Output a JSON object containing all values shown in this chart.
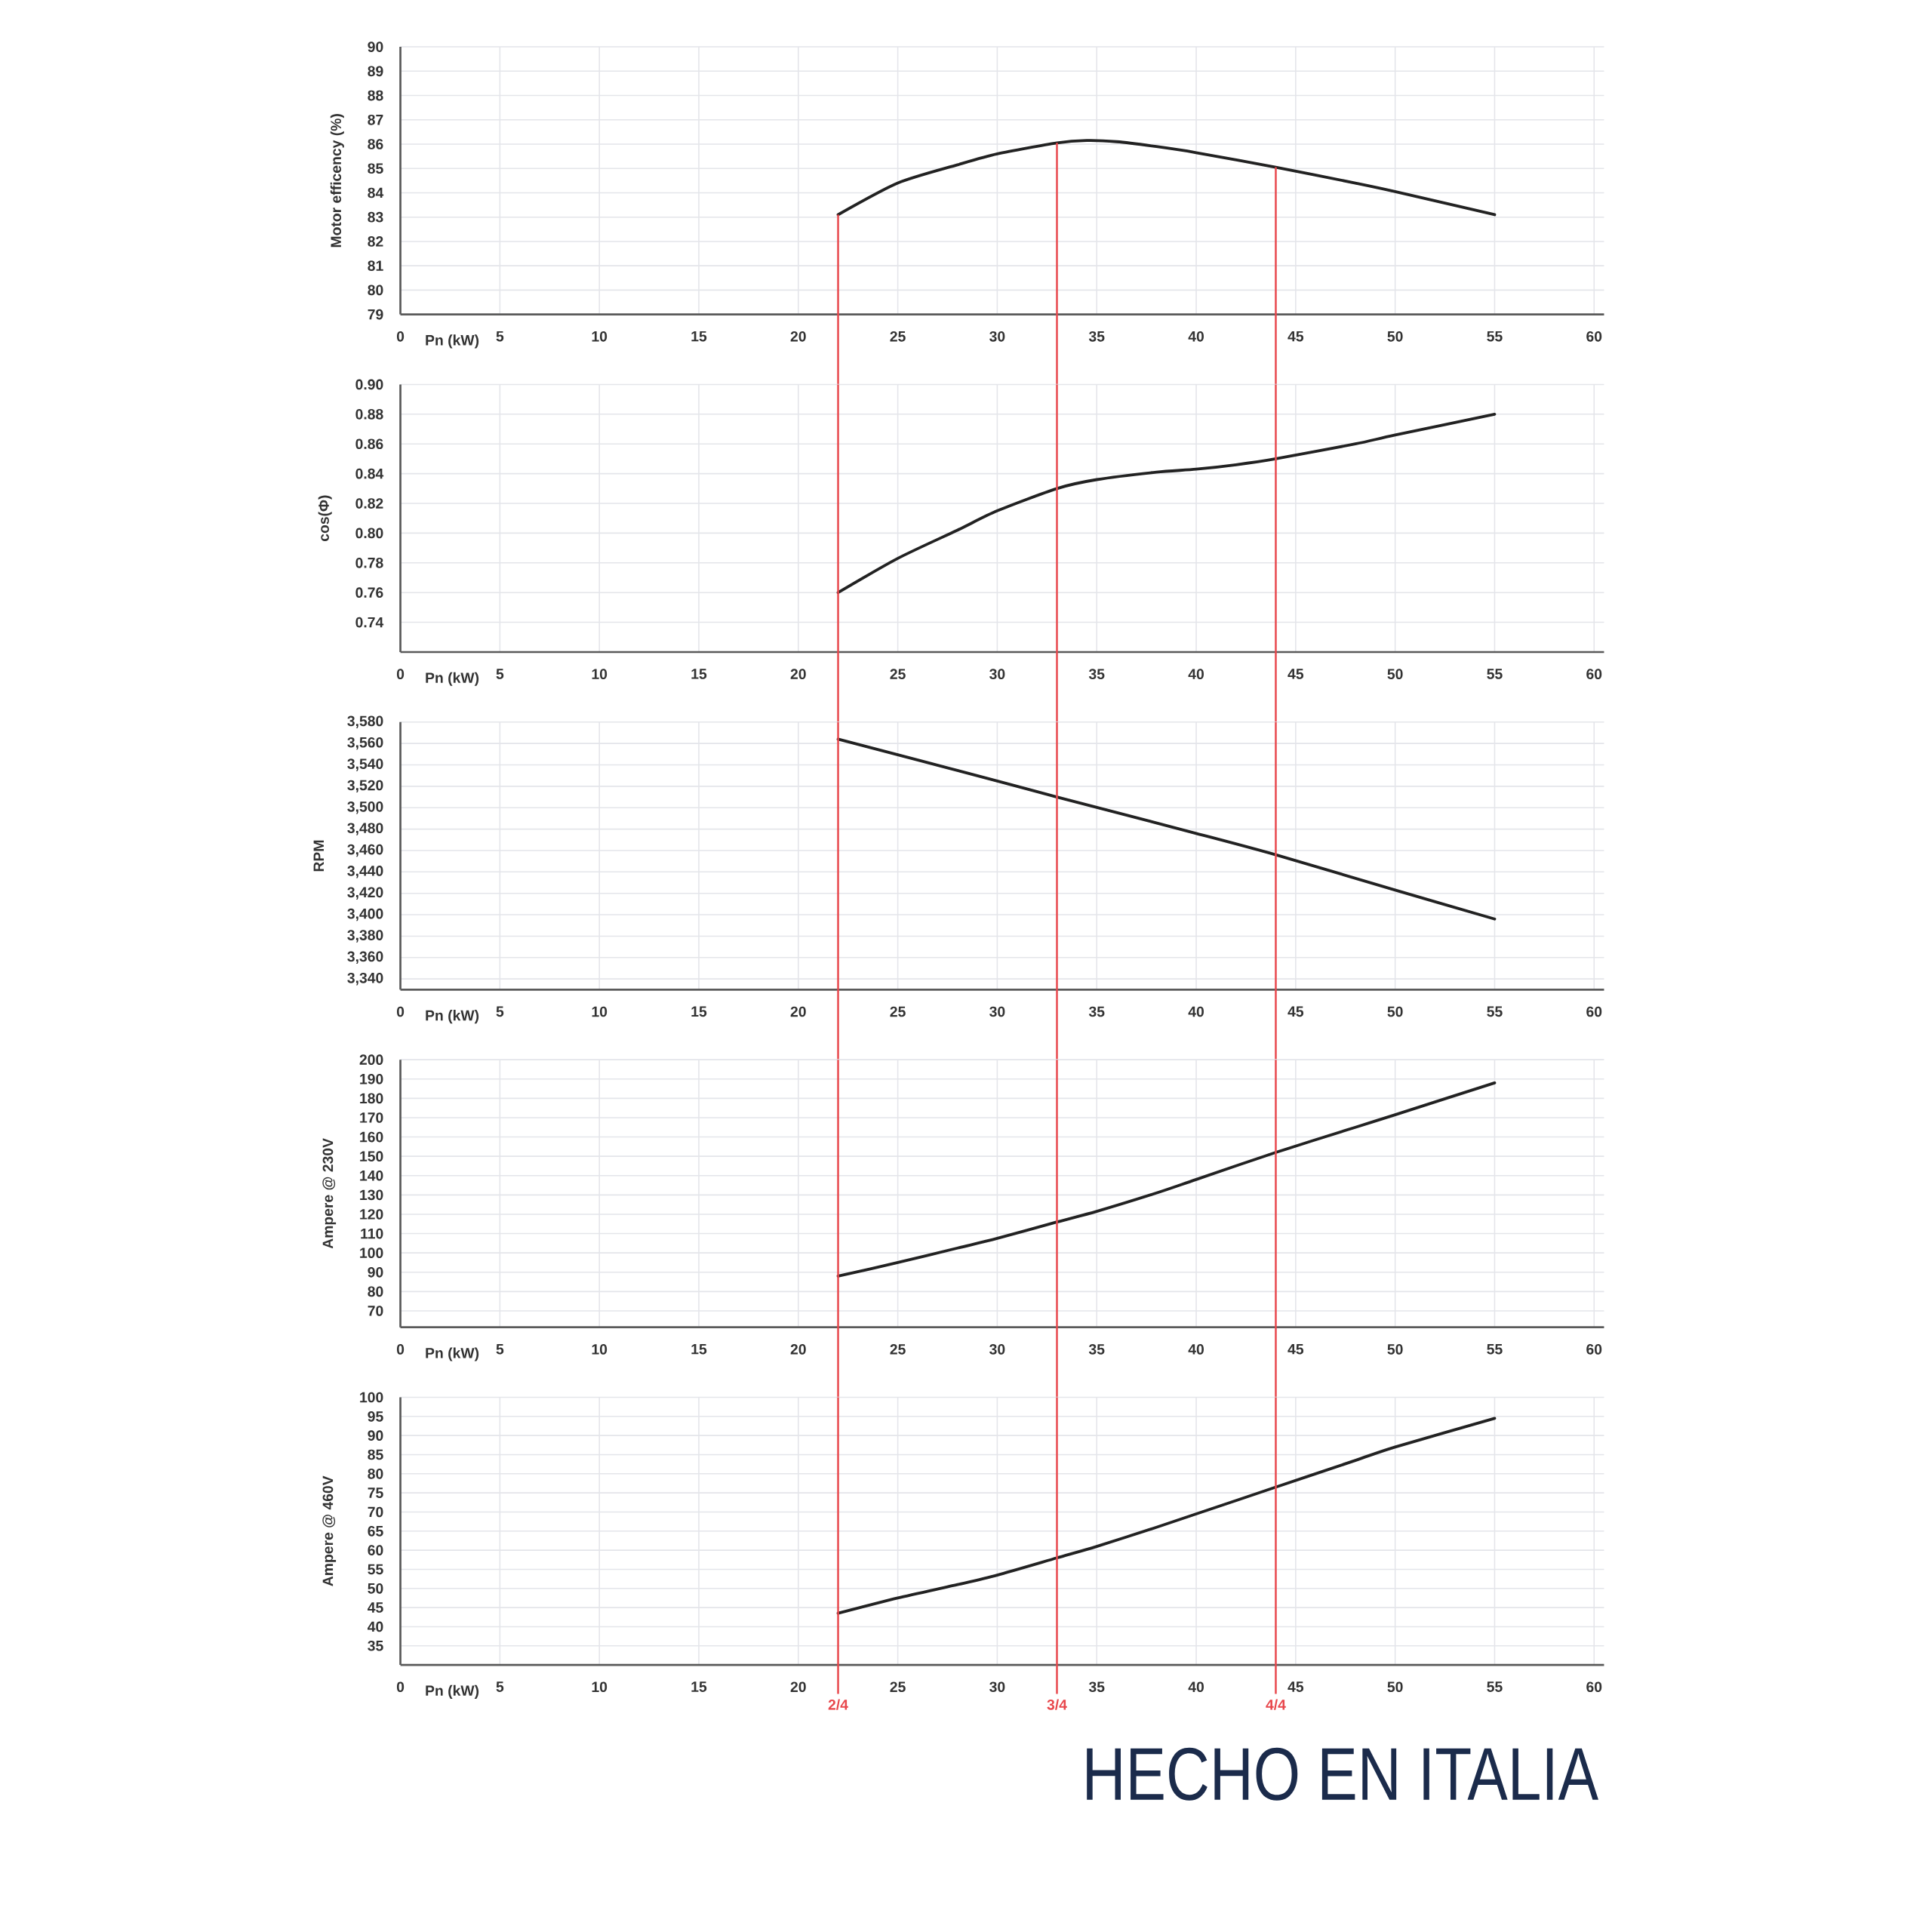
{
  "chart_data": [
    {
      "type": "line",
      "xlabel": "Pn (kW)",
      "ylabel": "Motor efficency (%)",
      "x": [
        22,
        25,
        28,
        30,
        33,
        34.5,
        36,
        38,
        40,
        44,
        48,
        50,
        55
      ],
      "values": [
        83.1,
        84.4,
        85.15,
        85.6,
        86.05,
        86.15,
        86.1,
        85.9,
        85.65,
        85.05,
        84.4,
        84.05,
        83.1
      ],
      "color": "#222222",
      "xlim": [
        0,
        60.5
      ],
      "ylim": [
        79,
        90
      ],
      "xticks": [
        0,
        5,
        10,
        15,
        20,
        25,
        30,
        35,
        40,
        45,
        50,
        55,
        60
      ],
      "yticks": [
        79,
        80,
        81,
        82,
        83,
        84,
        85,
        86,
        87,
        88,
        89,
        90
      ],
      "grid": true,
      "ref_lines": [
        {
          "axis": "x",
          "value": 22,
          "color": "#e8474c"
        },
        {
          "axis": "x",
          "value": 33,
          "color": "#e8474c"
        },
        {
          "axis": "x",
          "value": 44,
          "color": "#e8474c"
        }
      ]
    },
    {
      "type": "line",
      "xlabel": "Pn (kW)",
      "ylabel": "cos(Φ)",
      "x": [
        22,
        25,
        28,
        30,
        33,
        35,
        38,
        40,
        42,
        44,
        48,
        50,
        55
      ],
      "values": [
        0.76,
        0.783,
        0.802,
        0.815,
        0.83,
        0.836,
        0.841,
        0.843,
        0.846,
        0.85,
        0.86,
        0.866,
        0.88
      ],
      "color": "#222222",
      "xlim": [
        0,
        60.5
      ],
      "ylim": [
        0.72,
        0.9
      ],
      "xticks": [
        0,
        5,
        10,
        15,
        20,
        25,
        30,
        35,
        40,
        45,
        50,
        55,
        60
      ],
      "yticks": [
        0.74,
        0.76,
        0.78,
        {
          "value": 0.8,
          "label": "0.80"
        },
        0.82,
        0.84,
        0.86,
        0.88,
        {
          "value": 0.9,
          "label": "0.90"
        }
      ],
      "grid": true,
      "ref_lines": [
        {
          "axis": "x",
          "value": 22,
          "color": "#e8474c"
        },
        {
          "axis": "x",
          "value": 33,
          "color": "#e8474c"
        },
        {
          "axis": "x",
          "value": 44,
          "color": "#e8474c"
        }
      ]
    },
    {
      "type": "line",
      "xlabel": "Pn (kW)",
      "ylabel": "RPM",
      "x": [
        22,
        30,
        33,
        40,
        44,
        50,
        55
      ],
      "values": [
        3564,
        3525,
        3510,
        3476,
        3456,
        3423,
        3396
      ],
      "color": "#222222",
      "xlim": [
        0,
        60.5
      ],
      "ylim": [
        3330,
        3580
      ],
      "xticks": [
        0,
        5,
        10,
        15,
        20,
        25,
        30,
        35,
        40,
        45,
        50,
        55,
        60
      ],
      "yticks": [
        {
          "value": 3340,
          "label": "3,340"
        },
        {
          "value": 3360,
          "label": "3,360"
        },
        {
          "value": 3380,
          "label": "3,380"
        },
        {
          "value": 3400,
          "label": "3,400"
        },
        {
          "value": 3420,
          "label": "3,420"
        },
        {
          "value": 3440,
          "label": "3,440"
        },
        {
          "value": 3460,
          "label": "3,460"
        },
        {
          "value": 3480,
          "label": "3,480"
        },
        {
          "value": 3500,
          "label": "3,500"
        },
        {
          "value": 3520,
          "label": "3,520"
        },
        {
          "value": 3540,
          "label": "3,540"
        },
        {
          "value": 3560,
          "label": "3,560"
        },
        {
          "value": 3580,
          "label": "3,580"
        }
      ],
      "grid": true,
      "ref_lines": [
        {
          "axis": "x",
          "value": 22,
          "color": "#e8474c"
        },
        {
          "axis": "x",
          "value": 33,
          "color": "#e8474c"
        },
        {
          "axis": "x",
          "value": 44,
          "color": "#e8474c"
        }
      ]
    },
    {
      "type": "line",
      "xlabel": "Pn (kW)",
      "ylabel": "Ampere @ 230V",
      "x": [
        22,
        25,
        28,
        30,
        33,
        35,
        38,
        40,
        44,
        48,
        50,
        55
      ],
      "values": [
        88,
        95,
        102.5,
        107.5,
        116,
        121.5,
        131,
        138,
        152,
        165,
        171.5,
        188
      ],
      "color": "#222222",
      "xlim": [
        0,
        60.5
      ],
      "ylim": [
        61.5,
        200
      ],
      "xticks": [
        0,
        5,
        10,
        15,
        20,
        25,
        30,
        35,
        40,
        45,
        50,
        55,
        60
      ],
      "yticks": [
        70,
        80,
        90,
        100,
        110,
        120,
        130,
        140,
        150,
        160,
        170,
        180,
        190,
        200
      ],
      "grid": true,
      "ref_lines": [
        {
          "axis": "x",
          "value": 22,
          "color": "#e8474c"
        },
        {
          "axis": "x",
          "value": 33,
          "color": "#e8474c"
        },
        {
          "axis": "x",
          "value": 44,
          "color": "#e8474c"
        }
      ]
    },
    {
      "type": "line",
      "xlabel": "Pn (kW)",
      "ylabel": "Ampere @ 460V",
      "x": [
        22,
        25,
        28,
        30,
        33,
        35,
        38,
        40,
        44,
        48,
        50,
        55
      ],
      "values": [
        43.5,
        47.5,
        51,
        53.5,
        58,
        61,
        66,
        69.5,
        76.5,
        83.5,
        87,
        94.5
      ],
      "color": "#222222",
      "xlim": [
        0,
        60.5
      ],
      "ylim": [
        30,
        100
      ],
      "xticks": [
        0,
        5,
        10,
        15,
        20,
        25,
        30,
        35,
        40,
        45,
        50,
        55,
        60
      ],
      "yticks": [
        35,
        40,
        45,
        50,
        55,
        60,
        65,
        70,
        75,
        80,
        85,
        90,
        95,
        100
      ],
      "grid": true,
      "ref_lines": [
        {
          "axis": "x",
          "value": 22,
          "color": "#e8474c"
        },
        {
          "axis": "x",
          "value": 33,
          "color": "#e8474c"
        },
        {
          "axis": "x",
          "value": 44,
          "color": "#e8474c"
        }
      ],
      "annotations": [
        "2/4",
        "3/4",
        "4/4",
        "HECHO EN ITALIA"
      ]
    }
  ]
}
